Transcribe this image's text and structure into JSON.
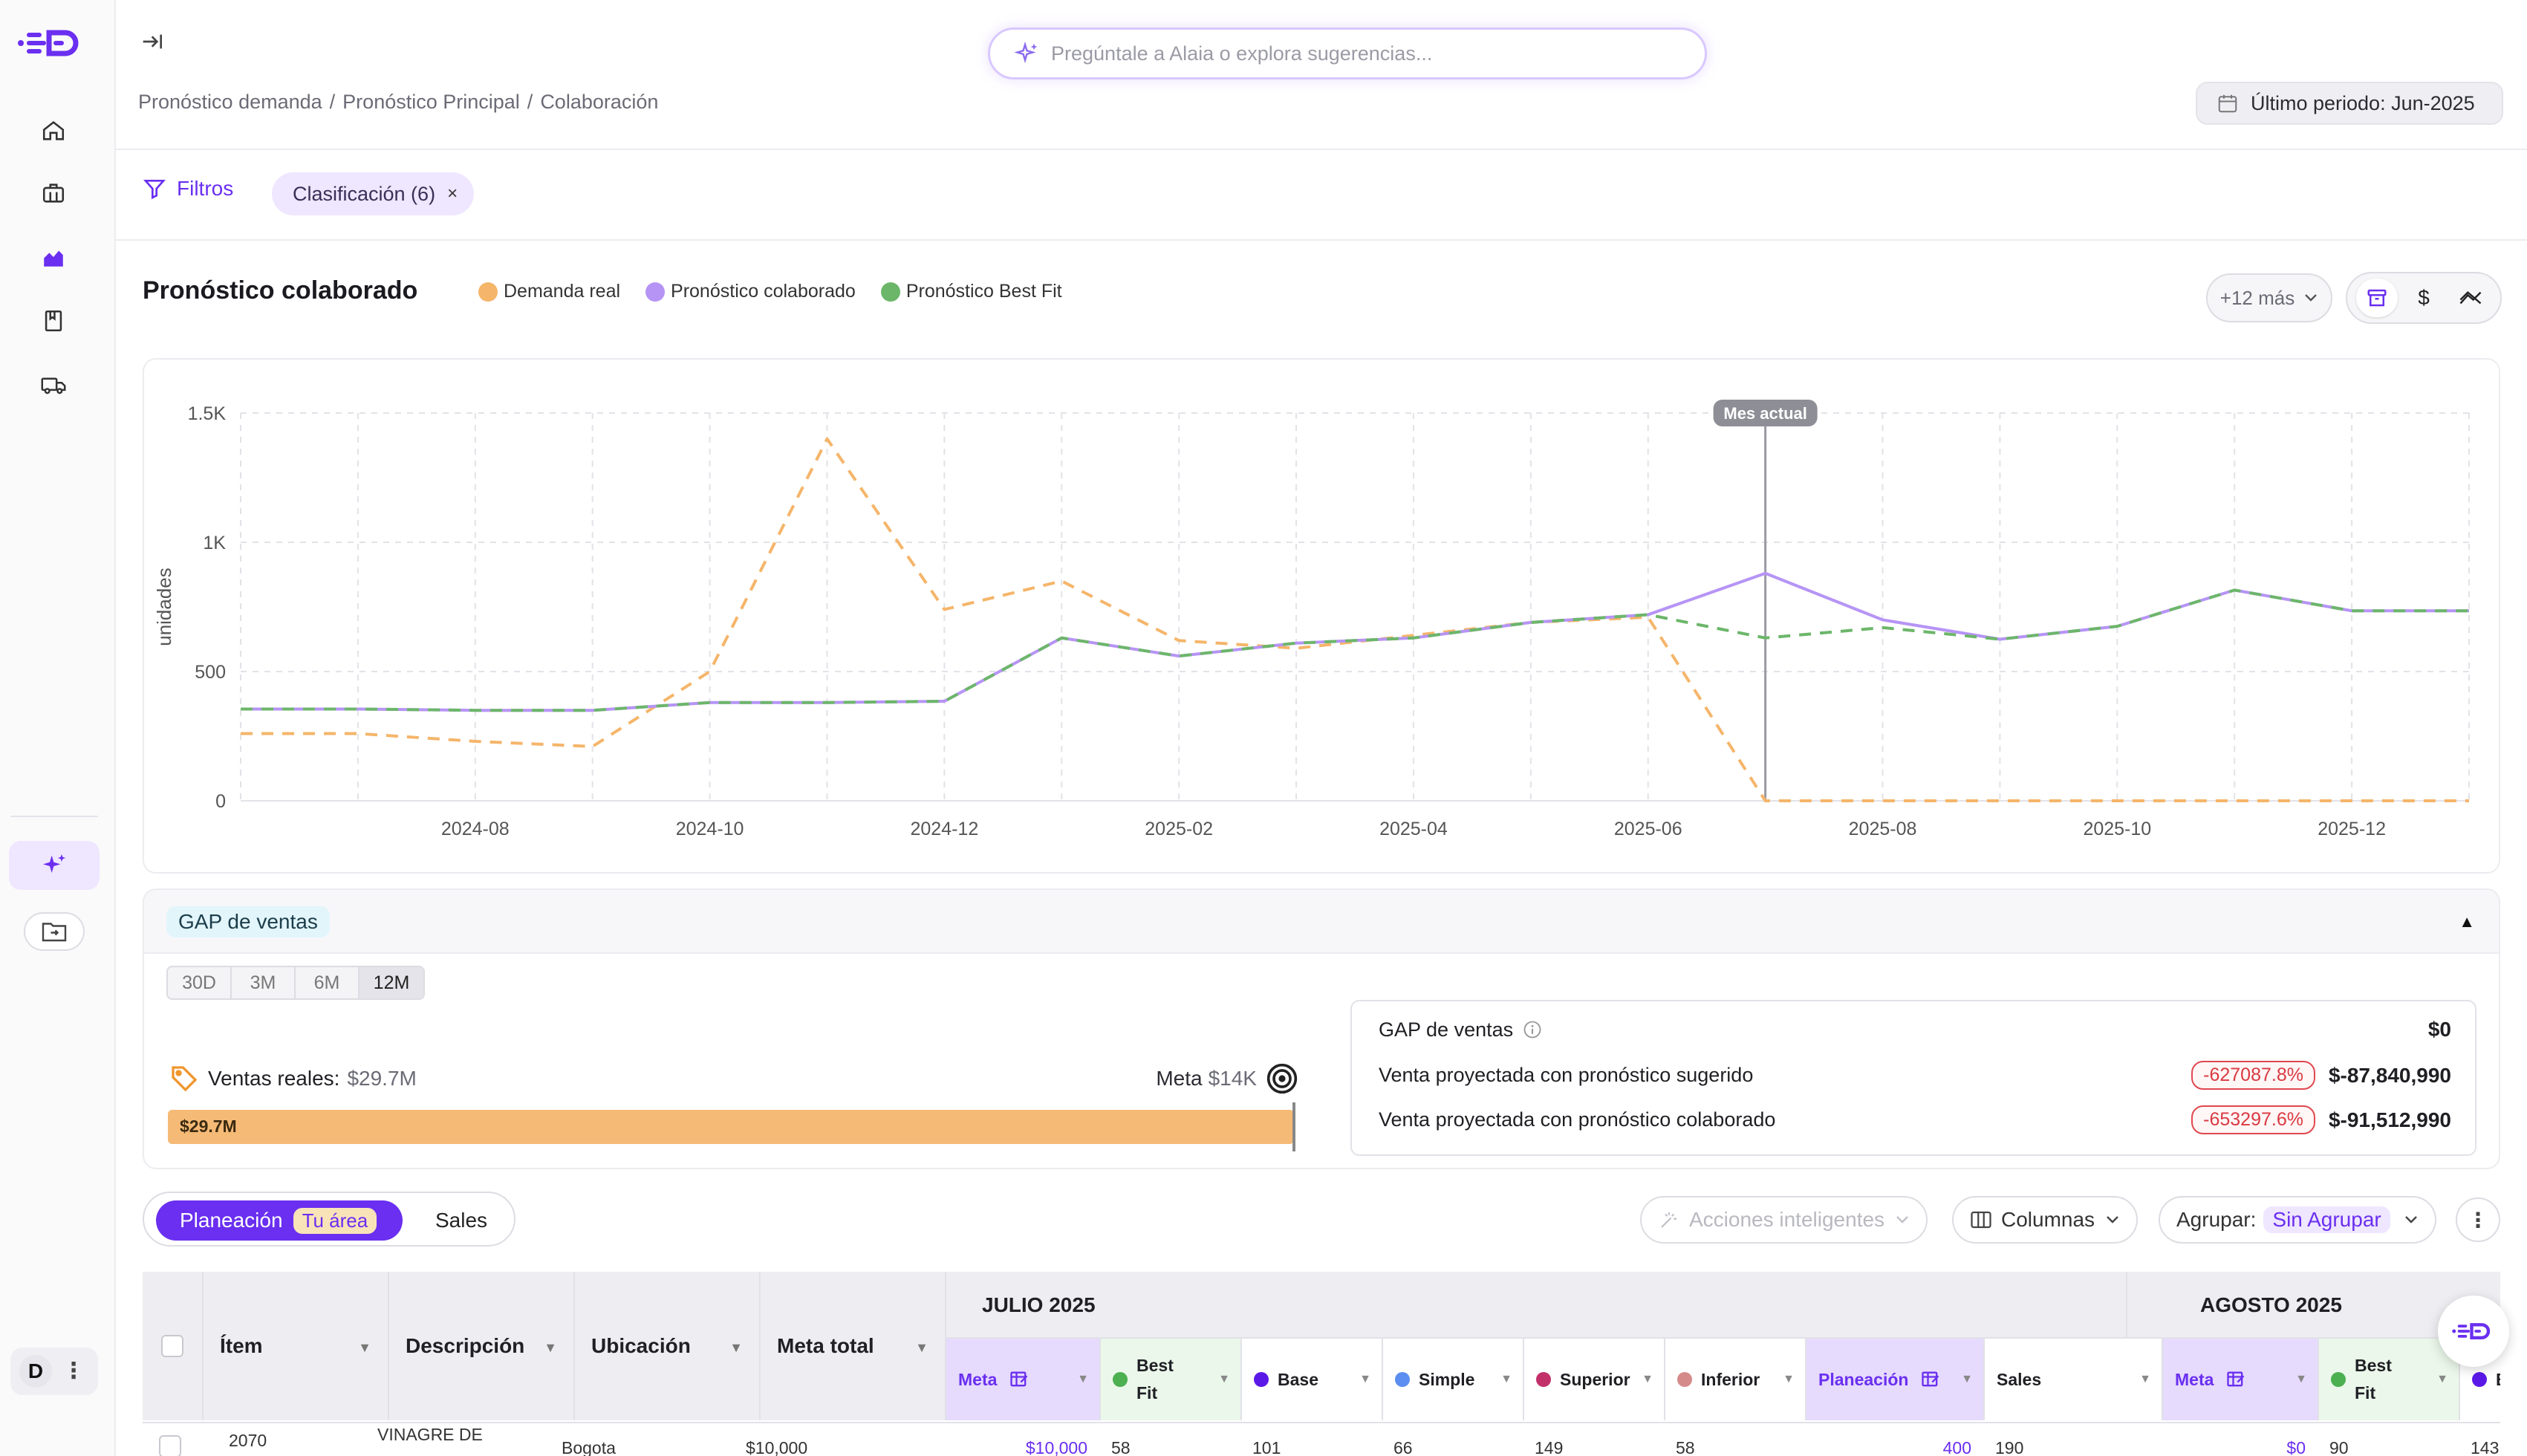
{
  "search": {
    "placeholder": "Pregúntale a Alaia o explora sugerencias..."
  },
  "breadcrumb": {
    "items": [
      "Pronóstico demanda",
      "Pronóstico Principal",
      "Colaboración"
    ],
    "sep": "/"
  },
  "period": {
    "label": "Último periodo: Jun-2025"
  },
  "filters": {
    "label": "Filtros",
    "chip": "Clasificación (6)",
    "chip_close": "×"
  },
  "chart_header": {
    "title": "Pronóstico colaborado",
    "legend": [
      {
        "label": "Demanda real",
        "color": "#f5b56a"
      },
      {
        "label": "Pronóstico colaborado",
        "color": "#b694f5"
      },
      {
        "label": "Pronóstico Best Fit",
        "color": "#6cb66a"
      }
    ],
    "more_label": "+12 más",
    "view_options": [
      "box-icon",
      "$",
      "trend-icon"
    ]
  },
  "chart_data": {
    "type": "line",
    "ylabel": "unidades",
    "ylim": [
      0,
      1500
    ],
    "y_ticks": [
      0,
      500,
      1000,
      1500
    ],
    "y_tick_labels": [
      "0",
      "500",
      "1K",
      "1.5K"
    ],
    "x": [
      "2024-06",
      "2024-07",
      "2024-08",
      "2024-09",
      "2024-10",
      "2024-11",
      "2024-12",
      "2025-01",
      "2025-02",
      "2025-03",
      "2025-04",
      "2025-05",
      "2025-06",
      "2025-07",
      "2025-08",
      "2025-09",
      "2025-10",
      "2025-11",
      "2025-12",
      "2026-01"
    ],
    "x_tick_labels": [
      "2024-08",
      "2024-10",
      "2024-12",
      "2025-02",
      "2025-04",
      "2025-06",
      "2025-08",
      "2025-10",
      "2025-12"
    ],
    "annotation": {
      "label": "Mes actual",
      "x": "2025-07"
    },
    "series": [
      {
        "name": "Demanda real",
        "color": "#f5b56a",
        "dashed": true,
        "values": [
          260,
          260,
          230,
          210,
          500,
          1400,
          740,
          850,
          620,
          590,
          640,
          690,
          710,
          0,
          0,
          0,
          0,
          0,
          0,
          0
        ]
      },
      {
        "name": "Pronóstico colaborado",
        "color": "#b694f5",
        "dashed": false,
        "values": [
          355,
          355,
          350,
          350,
          380,
          380,
          385,
          630,
          560,
          610,
          630,
          690,
          720,
          880,
          700,
          625,
          675,
          815,
          735,
          735
        ]
      },
      {
        "name": "Pronóstico Best Fit",
        "color": "#6cb66a",
        "dashed": true,
        "values": [
          355,
          355,
          350,
          350,
          380,
          380,
          385,
          630,
          560,
          610,
          630,
          690,
          720,
          630,
          670,
          625,
          675,
          815,
          735,
          735
        ]
      }
    ]
  },
  "gap": {
    "title": "GAP de ventas",
    "ranges": [
      "30D",
      "3M",
      "6M",
      "12M"
    ],
    "active_range": "12M",
    "sales_label": "Ventas reales:",
    "sales_value": "$29.7M",
    "meta_label": "Meta",
    "meta_value": "$14K",
    "bar_label": "$29.7M",
    "progress_ratio": 1.0,
    "summary": [
      {
        "label": "GAP de ventas",
        "pct": "",
        "value": "$0"
      },
      {
        "label": "Venta proyectada con pronóstico sugerido",
        "pct": "-627087.8%",
        "value": "$-87,840,990"
      },
      {
        "label": "Venta proyectada con pronóstico colaborado",
        "pct": "-653297.6%",
        "value": "$-91,512,990"
      }
    ]
  },
  "toolbar": {
    "tab_planning": "Planeación",
    "tab_planning_badge": "Tu área",
    "tab_sales": "Sales",
    "smart_actions": "Acciones inteligentes",
    "columns": "Columnas",
    "group_label": "Agrupar:",
    "group_value": "Sin Agrupar"
  },
  "table": {
    "columns": [
      "Ítem",
      "Descripción",
      "Ubicación",
      "Meta total"
    ],
    "months": [
      "JULIO 2025",
      "AGOSTO 2025"
    ],
    "subcolumns": [
      {
        "label": "Meta",
        "kind": "meta",
        "color": ""
      },
      {
        "label": "Best Fit",
        "kind": "bf",
        "color": "#4caf50"
      },
      {
        "label": "Base",
        "kind": "plain",
        "color": "#5b19e8"
      },
      {
        "label": "Simple",
        "kind": "plain",
        "color": "#5b8ef0"
      },
      {
        "label": "Superior",
        "kind": "plain",
        "color": "#c2306a"
      },
      {
        "label": "Inferior",
        "kind": "plain",
        "color": "#d58a8a"
      },
      {
        "label": "Planeación",
        "kind": "plan",
        "color": ""
      },
      {
        "label": "Sales",
        "kind": "plain",
        "color": ""
      },
      {
        "label": "Meta",
        "kind": "meta",
        "color": ""
      },
      {
        "label": "Best Fit",
        "kind": "bf",
        "color": "#4caf50"
      },
      {
        "label": "Bas",
        "kind": "plain",
        "color": "#5b19e8"
      }
    ],
    "rows": [
      {
        "item": "2070",
        "description": "VINAGRE DE",
        "location": "Bogota",
        "meta_total": "$10,000",
        "values": [
          "$10,000",
          "58",
          "101",
          "66",
          "149",
          "58",
          "400",
          "190",
          "$0",
          "90",
          "143"
        ]
      }
    ]
  },
  "user": {
    "initial": "D"
  }
}
